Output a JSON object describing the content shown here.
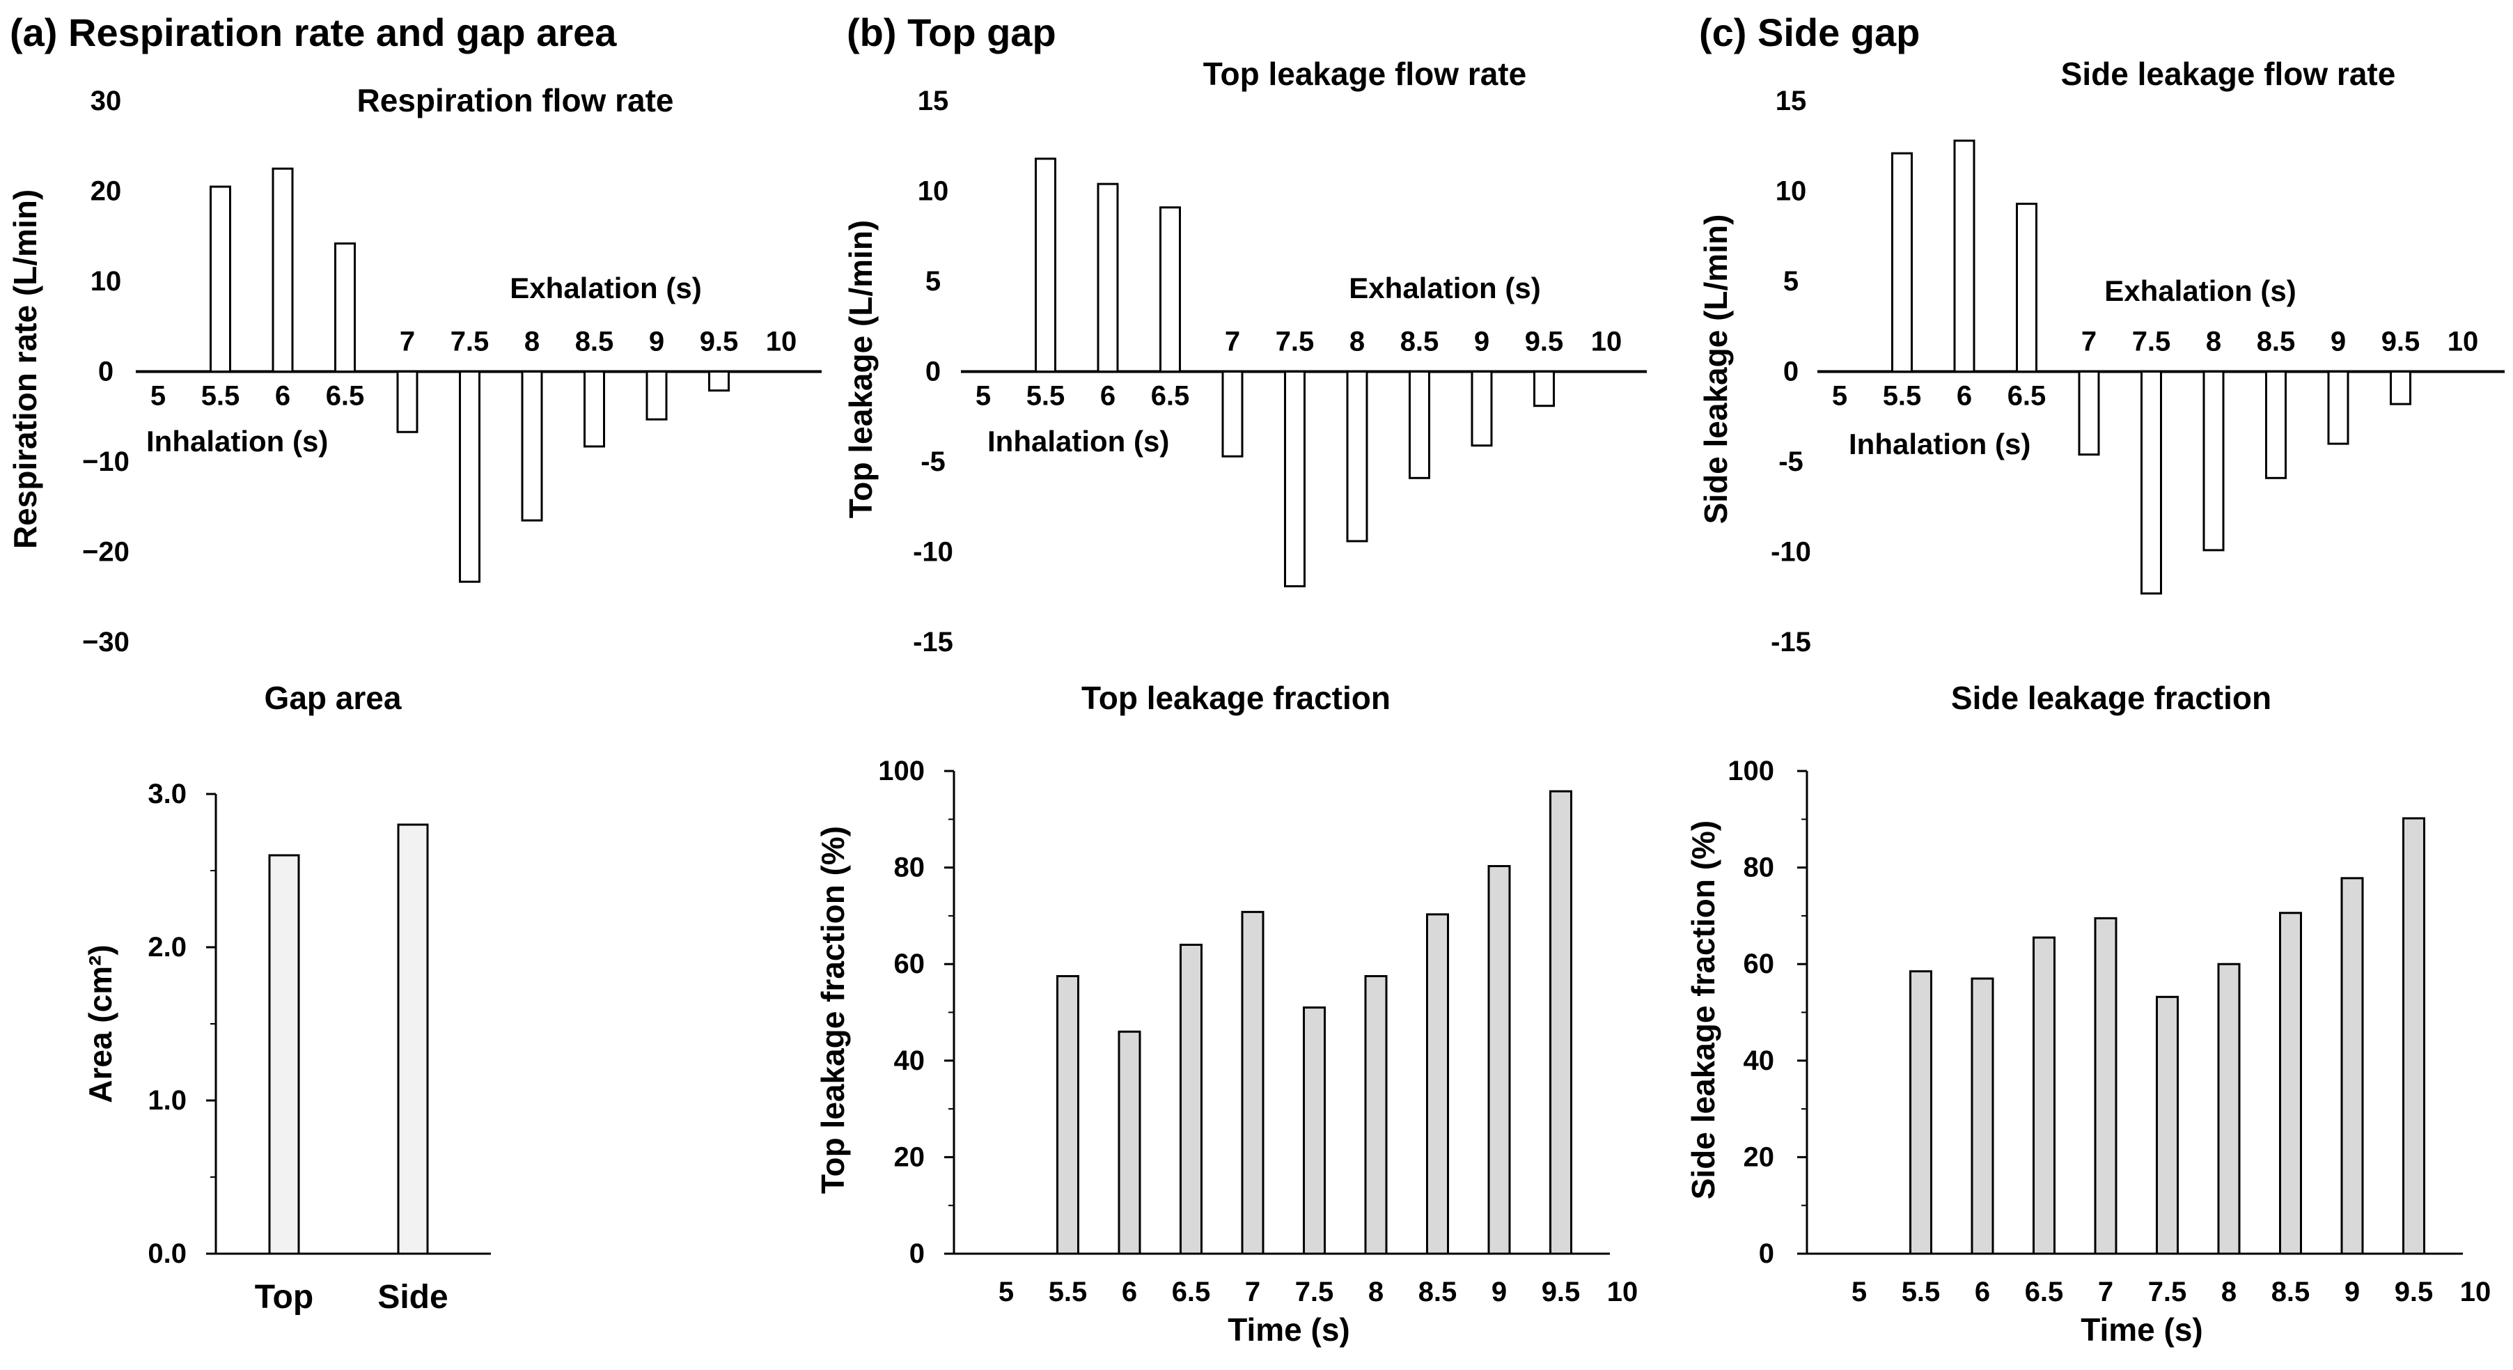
{
  "panels": {
    "a": "(a) Respiration rate and gap area",
    "b": "(b) Top gap",
    "c": "(c) Side gap"
  },
  "chart_data": [
    {
      "id": "respiration",
      "type": "bar",
      "title": "Respiration flow rate",
      "ylabel": "Respiration rate (L/min)",
      "xlabel": "",
      "categories": [
        "5",
        "5.5",
        "6",
        "6.5",
        "7",
        "7.5",
        "8",
        "8.5",
        "9",
        "9.5",
        "10"
      ],
      "values": [
        0,
        20.5,
        22.5,
        14.2,
        -6.7,
        -23.3,
        -16.5,
        -8.3,
        -5.3,
        -2.1,
        0
      ],
      "ylim": [
        -30,
        30
      ],
      "yticks": [
        "30",
        "20",
        "10",
        "0",
        "−10",
        "−20",
        "−30"
      ],
      "annotations": [
        "Inhalation (s)",
        "Exhalation (s)"
      ],
      "bar_color": "#ffffff",
      "grid": false
    },
    {
      "id": "top_leak",
      "type": "bar",
      "title": "Top leakage flow rate",
      "ylabel": "Top leakage (L/min)",
      "xlabel": "",
      "categories": [
        "5",
        "5.5",
        "6",
        "6.5",
        "7",
        "7.5",
        "8",
        "8.5",
        "9",
        "9.5",
        "10"
      ],
      "values": [
        0,
        11.8,
        10.4,
        9.1,
        -4.7,
        -11.9,
        -9.4,
        -5.9,
        -4.1,
        -1.9,
        0
      ],
      "ylim": [
        -15,
        15
      ],
      "yticks": [
        "15",
        "10",
        "5",
        "0",
        "-5",
        "-10",
        "-15"
      ],
      "annotations": [
        "Inhalation (s)",
        "Exhalation (s)"
      ],
      "bar_color": "#ffffff",
      "grid": false
    },
    {
      "id": "side_leak",
      "type": "bar",
      "title": "Side leakage flow rate",
      "ylabel": "Side leakage (L/min)",
      "xlabel": "",
      "categories": [
        "5",
        "5.5",
        "6",
        "6.5",
        "7",
        "7.5",
        "8",
        "8.5",
        "9",
        "9.5",
        "10"
      ],
      "values": [
        0,
        12.1,
        12.8,
        9.3,
        -4.6,
        -12.3,
        -9.9,
        -5.9,
        -4.0,
        -1.8,
        0
      ],
      "ylim": [
        -15,
        15
      ],
      "yticks": [
        "15",
        "10",
        "5",
        "0",
        "-5",
        "-10",
        "-15"
      ],
      "annotations": [
        "Inhalation (s)",
        "Exhalation (s)"
      ],
      "bar_color": "#ffffff",
      "grid": false
    },
    {
      "id": "gap_area",
      "type": "bar",
      "title": "Gap area",
      "ylabel": "Area (cm²)",
      "xlabel": "",
      "categories": [
        "Top",
        "Side"
      ],
      "values": [
        2.6,
        2.8
      ],
      "ylim": [
        0,
        3.0
      ],
      "yticks": [
        "0.0",
        "1.0",
        "2.0",
        "3.0"
      ],
      "bar_color": "#f2f2f2",
      "grid": false
    },
    {
      "id": "top_frac",
      "type": "bar",
      "title": "Top leakage fraction",
      "ylabel": "Top leakage fraction (%)",
      "xlabel": "Time (s)",
      "categories": [
        "5",
        "5.5",
        "6",
        "6.5",
        "7",
        "7.5",
        "8",
        "8.5",
        "9",
        "9.5",
        "10"
      ],
      "values": [
        null,
        57.5,
        46.0,
        64.0,
        70.8,
        51.0,
        57.5,
        70.3,
        80.3,
        95.8,
        null
      ],
      "ylim": [
        0,
        100
      ],
      "yticks": [
        "0",
        "20",
        "40",
        "60",
        "80",
        "100"
      ],
      "bar_color": "#d9d9d9",
      "grid": false
    },
    {
      "id": "side_frac",
      "type": "bar",
      "title": "Side leakage fraction",
      "ylabel": "Side leakage fraction (%)",
      "xlabel": "Time (s)",
      "categories": [
        "5",
        "5.5",
        "6",
        "6.5",
        "7",
        "7.5",
        "8",
        "8.5",
        "9",
        "9.5",
        "10"
      ],
      "values": [
        null,
        58.5,
        57.0,
        65.5,
        69.5,
        53.2,
        60.0,
        70.6,
        77.8,
        90.2,
        null
      ],
      "ylim": [
        0,
        100
      ],
      "yticks": [
        "0",
        "20",
        "40",
        "60",
        "80",
        "100"
      ],
      "bar_color": "#d9d9d9",
      "grid": false
    }
  ]
}
